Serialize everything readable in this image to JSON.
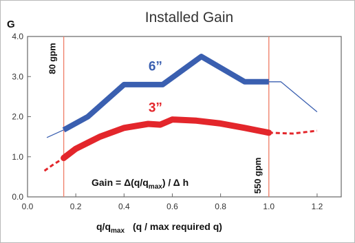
{
  "chart_data": {
    "type": "line",
    "title": "Installed Gain",
    "ylabel": "G",
    "xlabel_main": "q/q",
    "xlabel_sub": "max",
    "xlabel_note": "(q / max required q)",
    "xlim": [
      0,
      1.3
    ],
    "ylim": [
      0,
      4.0
    ],
    "x_ticks": [
      "0.0",
      "0.2",
      "0.4",
      "0.6",
      "0.8",
      "1.0",
      "1.2"
    ],
    "x_tick_values": [
      0,
      0.2,
      0.4,
      0.6,
      0.8,
      1.0,
      1.2
    ],
    "y_ticks": [
      "0.0",
      "1.0",
      "2.0",
      "3.0",
      "4.0"
    ],
    "y_tick_values": [
      0,
      1,
      2,
      3,
      4
    ],
    "grid": false,
    "colors": {
      "series_6": "#3a5fb0",
      "series_3": "#e3262b",
      "marker_line": "#f0836e"
    },
    "series": [
      {
        "name": "6”",
        "color": "#3a5fb0",
        "thin_points": [
          [
            0.08,
            1.48
          ],
          [
            0.15,
            1.67
          ]
        ],
        "thick_points": [
          [
            0.15,
            1.67
          ],
          [
            0.25,
            2.0
          ],
          [
            0.4,
            2.8
          ],
          [
            0.56,
            2.8
          ],
          [
            0.72,
            3.5
          ],
          [
            0.9,
            2.87
          ],
          [
            1.0,
            2.87
          ]
        ],
        "thin_points_tail": [
          [
            1.0,
            2.87
          ],
          [
            1.05,
            2.87
          ],
          [
            1.2,
            2.12
          ]
        ]
      },
      {
        "name": "3”",
        "color": "#e3262b",
        "dashed_points": [
          [
            0.07,
            0.65
          ],
          [
            0.1,
            0.78
          ],
          [
            0.15,
            0.97
          ]
        ],
        "thick_points": [
          [
            0.15,
            0.97
          ],
          [
            0.2,
            1.2
          ],
          [
            0.3,
            1.5
          ],
          [
            0.4,
            1.72
          ],
          [
            0.5,
            1.82
          ],
          [
            0.55,
            1.8
          ],
          [
            0.6,
            1.93
          ],
          [
            0.7,
            1.9
          ],
          [
            0.8,
            1.83
          ],
          [
            0.9,
            1.72
          ],
          [
            1.0,
            1.6
          ]
        ],
        "dashed_points_tail": [
          [
            1.0,
            1.6
          ],
          [
            1.1,
            1.58
          ],
          [
            1.2,
            1.65
          ]
        ]
      }
    ],
    "reference_lines": [
      {
        "x": 0.15,
        "label": "80 gpm"
      },
      {
        "x": 1.0,
        "label": "550 gpm"
      }
    ],
    "formula": {
      "prefix": "Gain = Δ(q/q",
      "sub": "max",
      "suffix": ") / Δ h"
    },
    "series_labels": [
      {
        "text": "6”",
        "x": 0.53,
        "y": 3.15
      },
      {
        "text": "3”",
        "x": 0.53,
        "y": 2.12
      }
    ]
  }
}
